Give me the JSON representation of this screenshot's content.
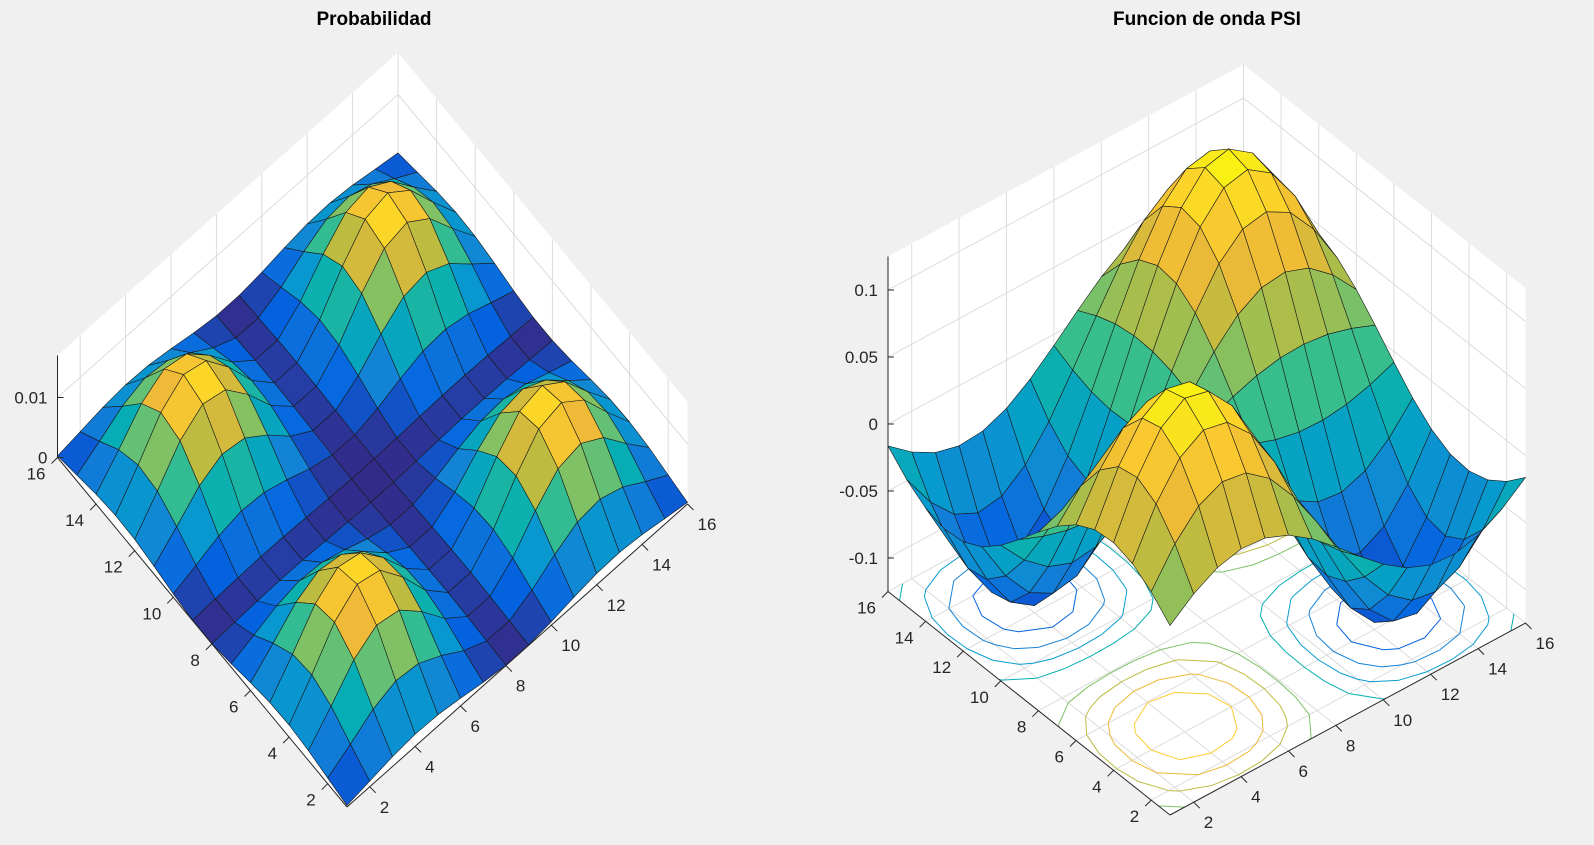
{
  "chart_data": [
    {
      "type": "surface",
      "title": "Probabilidad",
      "x": [
        1,
        2,
        3,
        4,
        5,
        6,
        7,
        8,
        9,
        10,
        11,
        12,
        13,
        14,
        15,
        16
      ],
      "y": [
        1,
        2,
        3,
        4,
        5,
        6,
        7,
        8,
        9,
        10,
        11,
        12,
        13,
        14,
        15,
        16
      ],
      "function": "PSI(x,y)^2",
      "xticks": [
        "2",
        "4",
        "6",
        "8",
        "10",
        "12",
        "14",
        "16"
      ],
      "yticks": [
        "2",
        "4",
        "6",
        "8",
        "10",
        "12",
        "14",
        "16"
      ],
      "zticks": [
        "0",
        "0.01"
      ],
      "zlim": [
        0,
        0.017
      ],
      "colormap": "parula",
      "grid": true,
      "view": {
        "azimuth": -45,
        "elevation": 68
      }
    },
    {
      "type": "surfc",
      "title": "Funcion de onda PSI",
      "x": [
        1,
        2,
        3,
        4,
        5,
        6,
        7,
        8,
        9,
        10,
        11,
        12,
        13,
        14,
        15,
        16
      ],
      "y": [
        1,
        2,
        3,
        4,
        5,
        6,
        7,
        8,
        9,
        10,
        11,
        12,
        13,
        14,
        15,
        16
      ],
      "function": "PSI(x,y) = 0.125*sin(2*pi*x/17)*sin(2*pi*y/17)",
      "xticks": [
        "2",
        "4",
        "6",
        "8",
        "10",
        "12",
        "14",
        "16"
      ],
      "yticks": [
        "2",
        "4",
        "6",
        "8",
        "10",
        "12",
        "14",
        "16"
      ],
      "zticks": [
        "-0.1",
        "-0.05",
        "0",
        "0.05",
        "0.1"
      ],
      "zlim": [
        -0.125,
        0.125
      ],
      "colormap": "parula",
      "contour_levels": [
        -0.1,
        -0.075,
        -0.05,
        -0.025,
        0.025,
        0.05,
        0.075,
        0.1
      ],
      "grid": true,
      "view": {
        "azimuth": -45,
        "elevation": 58
      }
    }
  ]
}
